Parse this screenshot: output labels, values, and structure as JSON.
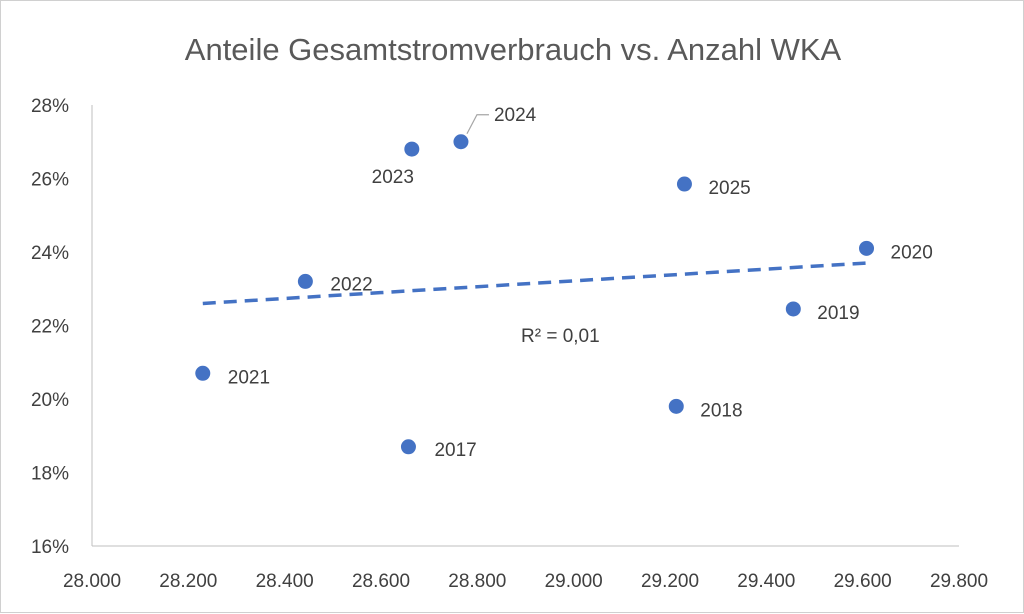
{
  "chart_data": {
    "type": "scatter",
    "title": "Anteile Gesamtstromverbrauch vs. Anzahl WKA",
    "xlabel": "",
    "ylabel": "",
    "xlim": [
      28000,
      29800
    ],
    "ylim": [
      16,
      28
    ],
    "x_ticks": [
      28000,
      28200,
      28400,
      28600,
      28800,
      29000,
      29200,
      29400,
      29600,
      29800
    ],
    "x_tick_labels": [
      "28.000",
      "28.200",
      "28.400",
      "28.600",
      "28.800",
      "29.000",
      "29.200",
      "29.400",
      "29.600",
      "29.800"
    ],
    "y_ticks": [
      16,
      18,
      20,
      22,
      24,
      26,
      28
    ],
    "y_tick_labels": [
      "16%",
      "18%",
      "20%",
      "22%",
      "24%",
      "26%",
      "28%"
    ],
    "grid": false,
    "marker_color": "#4472c4",
    "trendline_color": "#4472c4",
    "points": [
      {
        "label": "2017",
        "x": 28657,
        "y": 18.7
      },
      {
        "label": "2018",
        "x": 29213,
        "y": 19.8
      },
      {
        "label": "2019",
        "x": 29456,
        "y": 22.45
      },
      {
        "label": "2020",
        "x": 29608,
        "y": 24.1
      },
      {
        "label": "2021",
        "x": 28230,
        "y": 20.7
      },
      {
        "label": "2022",
        "x": 28443,
        "y": 23.2
      },
      {
        "label": "2023",
        "x": 28664,
        "y": 26.8
      },
      {
        "label": "2024",
        "x": 28766,
        "y": 27.0
      },
      {
        "label": "2025",
        "x": 29230,
        "y": 25.85
      }
    ],
    "trendline": {
      "type": "linear",
      "x_range": [
        28230,
        29608
      ],
      "y_values": [
        22.6,
        23.7
      ],
      "label": "R² = 0,01"
    }
  }
}
